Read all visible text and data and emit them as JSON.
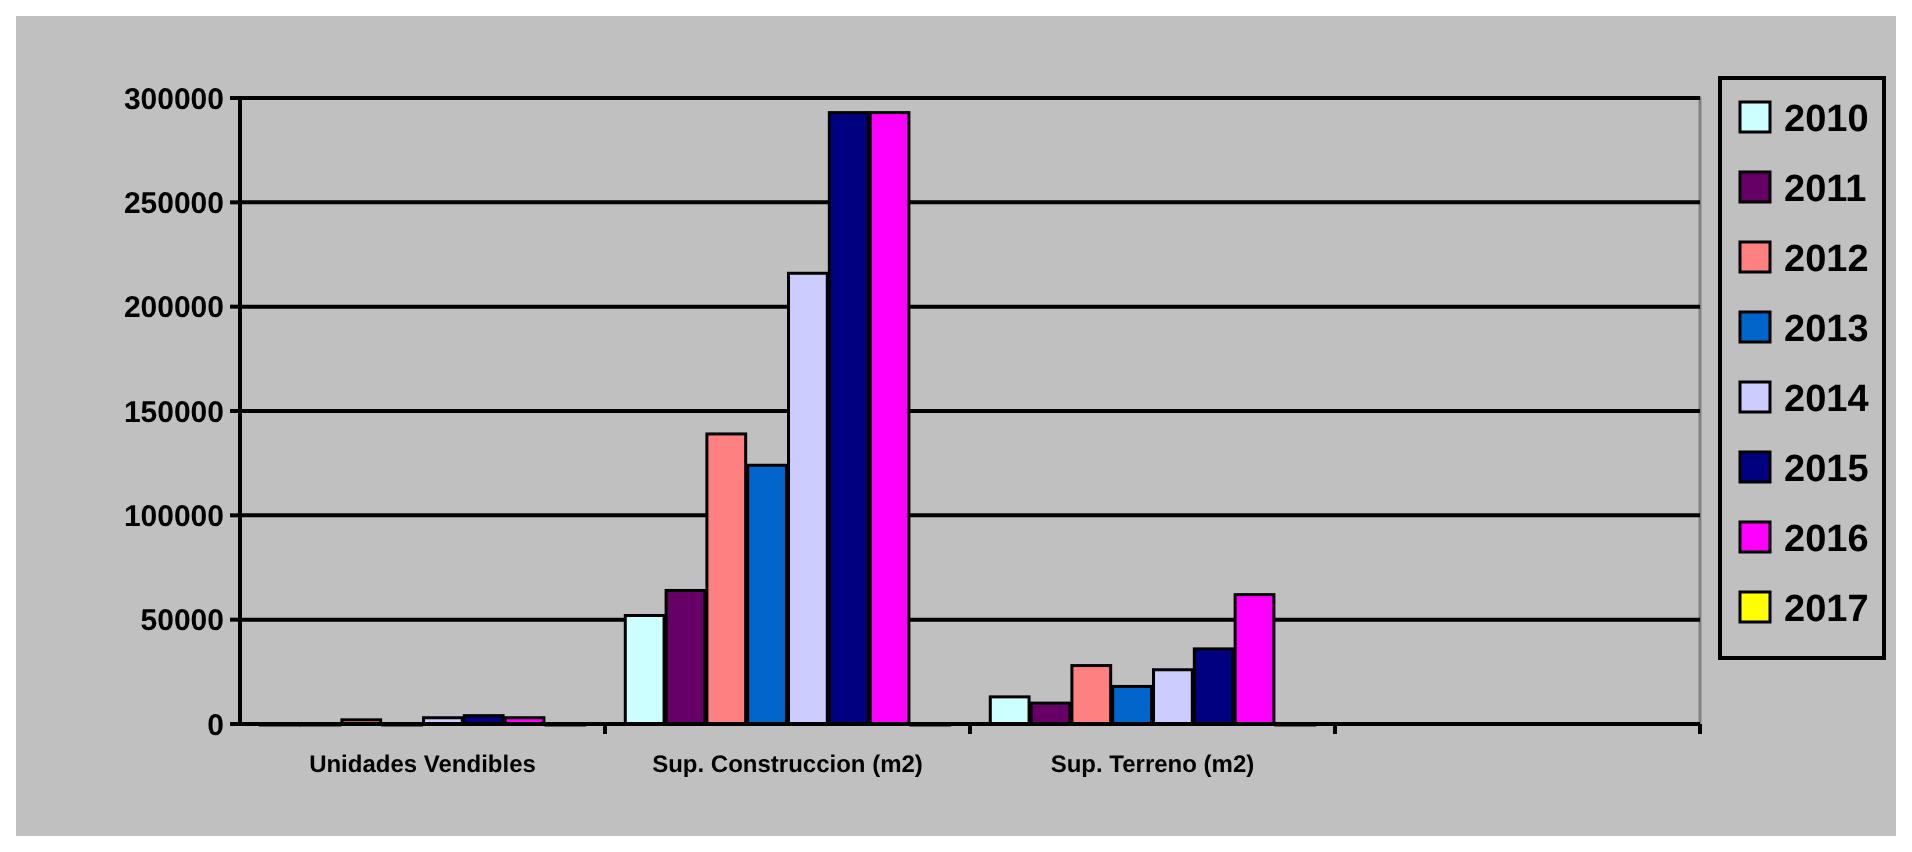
{
  "chart_data": {
    "type": "bar",
    "categories": [
      "Unidades Vendibles",
      "Sup. Construccion (m2)",
      "Sup. Terreno (m2)",
      null
    ],
    "series": [
      {
        "name": "2010",
        "color": "#ccffff",
        "values": [
          0,
          52000,
          13000,
          null
        ]
      },
      {
        "name": "2011",
        "color": "#660066",
        "values": [
          0,
          64000,
          10000,
          null
        ]
      },
      {
        "name": "2012",
        "color": "#ff8080",
        "values": [
          2000,
          139000,
          28000,
          null
        ]
      },
      {
        "name": "2013",
        "color": "#0066cc",
        "values": [
          0,
          124000,
          18000,
          null
        ]
      },
      {
        "name": "2014",
        "color": "#ccccff",
        "values": [
          3000,
          216000,
          26000,
          null
        ]
      },
      {
        "name": "2015",
        "color": "#000080",
        "values": [
          4000,
          293000,
          36000,
          null
        ]
      },
      {
        "name": "2016",
        "color": "#ff00ff",
        "values": [
          3000,
          293000,
          62000,
          null
        ]
      },
      {
        "name": "2017",
        "color": "#ffff00",
        "values": [
          0,
          0,
          0,
          null
        ]
      }
    ],
    "ylim": [
      0,
      300000
    ],
    "yticks": [
      0,
      50000,
      100000,
      150000,
      200000,
      250000,
      300000
    ],
    "grid": "y",
    "legend": "right"
  }
}
